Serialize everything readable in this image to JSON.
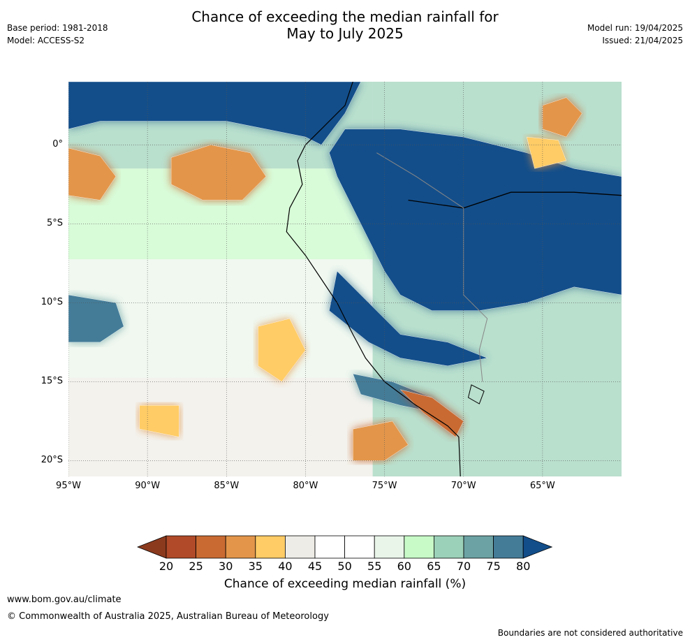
{
  "header": {
    "title_line1": "Chance of exceeding the median rainfall for",
    "title_line2": "May to July 2025",
    "base_period": "Base period: 1981-2018",
    "model": "Model: ACCESS-S2",
    "model_run": "Model run: 19/04/2025",
    "issued": "Issued: 21/04/2025"
  },
  "map": {
    "lon_range": [
      -95,
      -60
    ],
    "lat_range": [
      -21,
      4
    ],
    "lat_ticks": [
      {
        "value": 0,
        "label": "0°"
      },
      {
        "value": -5,
        "label": "5°S"
      },
      {
        "value": -10,
        "label": "10°S"
      },
      {
        "value": -15,
        "label": "15°S"
      },
      {
        "value": -20,
        "label": "20°S"
      }
    ],
    "lon_ticks": [
      {
        "value": -95,
        "label": "95°W"
      },
      {
        "value": -90,
        "label": "90°W"
      },
      {
        "value": -85,
        "label": "85°W"
      },
      {
        "value": -80,
        "label": "80°W"
      },
      {
        "value": -75,
        "label": "75°W"
      },
      {
        "value": -70,
        "label": "70°W"
      },
      {
        "value": -65,
        "label": "65°W"
      }
    ],
    "regions": [
      {
        "name": "north-east-pacific-wet",
        "value": 80,
        "poly": [
          [
            -95,
            4
          ],
          [
            -76.5,
            4
          ],
          [
            -77.5,
            2
          ],
          [
            -79,
            0
          ],
          [
            -80,
            0.5
          ],
          [
            -85,
            1.5
          ],
          [
            -88,
            1.5
          ],
          [
            -91,
            1.5
          ],
          [
            -93,
            1.5
          ],
          [
            -95,
            1
          ]
        ]
      },
      {
        "name": "amazon-wet",
        "value": 80,
        "poly": [
          [
            -77.5,
            1
          ],
          [
            -74,
            1
          ],
          [
            -70,
            0.5
          ],
          [
            -66,
            -0.5
          ],
          [
            -63,
            -1.5
          ],
          [
            -60,
            -2
          ],
          [
            -60,
            -9.5
          ],
          [
            -63,
            -9
          ],
          [
            -66,
            -10
          ],
          [
            -69,
            -10.5
          ],
          [
            -72,
            -10.5
          ],
          [
            -74,
            -9.5
          ],
          [
            -75,
            -8
          ],
          [
            -76,
            -6
          ],
          [
            -77,
            -4
          ],
          [
            -78,
            -2
          ],
          [
            -78.5,
            -0.5
          ]
        ]
      },
      {
        "name": "peru-coast-wet",
        "value": 80,
        "poly": [
          [
            -78,
            -8
          ],
          [
            -76,
            -10
          ],
          [
            -74,
            -12
          ],
          [
            -71,
            -12.5
          ],
          [
            -68.5,
            -13.5
          ],
          [
            -71,
            -14
          ],
          [
            -74,
            -13.5
          ],
          [
            -76,
            -12.5
          ],
          [
            -78.5,
            -10.5
          ]
        ]
      },
      {
        "name": "west-ocean-wet",
        "value": 75,
        "poly": [
          [
            -95,
            -9.5
          ],
          [
            -92,
            -10
          ],
          [
            -91.5,
            -11.5
          ],
          [
            -93,
            -12.5
          ],
          [
            -95,
            -12.5
          ]
        ]
      },
      {
        "name": "coast-strip-wet",
        "value": 75,
        "poly": [
          [
            -77,
            -14.5
          ],
          [
            -74.5,
            -15
          ],
          [
            -72,
            -16
          ],
          [
            -71.5,
            -17
          ],
          [
            -74,
            -16.5
          ],
          [
            -76.5,
            -15.8
          ]
        ]
      },
      {
        "name": "central-ocean-dry",
        "value": 30,
        "poly": [
          [
            -88.5,
            -0.8
          ],
          [
            -86,
            0
          ],
          [
            -83.5,
            -0.5
          ],
          [
            -82.5,
            -2
          ],
          [
            -84,
            -3.5
          ],
          [
            -86.5,
            -3.5
          ],
          [
            -88.5,
            -2.5
          ]
        ]
      },
      {
        "name": "west-ocean-dry",
        "value": 30,
        "poly": [
          [
            -95,
            -0.2
          ],
          [
            -93,
            -0.7
          ],
          [
            -92,
            -2
          ],
          [
            -93,
            -3.5
          ],
          [
            -95,
            -3.2
          ]
        ]
      },
      {
        "name": "east-dry",
        "value": 30,
        "poly": [
          [
            -65,
            2.5
          ],
          [
            -63.5,
            3
          ],
          [
            -62.5,
            2
          ],
          [
            -63.5,
            0.5
          ],
          [
            -65,
            1
          ]
        ]
      },
      {
        "name": "ecuador-dry",
        "value": 35,
        "poly": [
          [
            -66,
            0.5
          ],
          [
            -64,
            0.3
          ],
          [
            -63.5,
            -1
          ],
          [
            -65.5,
            -1.5
          ]
        ]
      },
      {
        "name": "south-ocean-dry-1",
        "value": 35,
        "poly": [
          [
            -83,
            -11.5
          ],
          [
            -81,
            -11
          ],
          [
            -80,
            -13
          ],
          [
            -81.5,
            -15
          ],
          [
            -83,
            -14
          ]
        ]
      },
      {
        "name": "south-ocean-dry-2",
        "value": 35,
        "poly": [
          [
            -90.5,
            -16.5
          ],
          [
            -88,
            -16.5
          ],
          [
            -88,
            -18.5
          ],
          [
            -90.5,
            -18
          ]
        ]
      },
      {
        "name": "south-ocean-dry-3",
        "value": 30,
        "poly": [
          [
            -77,
            -18
          ],
          [
            -74.5,
            -17.5
          ],
          [
            -73.5,
            -19
          ],
          [
            -75,
            -20
          ],
          [
            -77,
            -20
          ]
        ]
      },
      {
        "name": "chile-coast-dry",
        "value": 25,
        "poly": [
          [
            -74,
            -15.5
          ],
          [
            -72,
            -16
          ],
          [
            -70,
            -17.5
          ],
          [
            -70.5,
            -18.5
          ],
          [
            -72.5,
            -17
          ]
        ]
      }
    ],
    "legend_levels": [
      {
        "label": "20",
        "color": "#8B3A1E"
      },
      {
        "label": "25",
        "color": "#B04A28"
      },
      {
        "label": "30",
        "color": "#C96A32"
      },
      {
        "label": "35",
        "color": "#E3964A"
      },
      {
        "label": "40",
        "color": "#FFCC66"
      },
      {
        "label": "45",
        "color": "#EEECE6"
      },
      {
        "label": "50",
        "color": "#FFFFFF"
      },
      {
        "label": "55",
        "color": "#FFFFFF"
      },
      {
        "label": "60",
        "color": "#E9F5E9"
      },
      {
        "label": "65",
        "color": "#C7FAC7"
      },
      {
        "label": "70",
        "color": "#9BD1B8"
      },
      {
        "label": "75",
        "color": "#6CA2A3"
      },
      {
        "label": "80",
        "color": "#447C98"
      },
      {
        "label": "",
        "color": "#134E8A"
      }
    ]
  },
  "colorbar_label": "Chance of exceeding median rainfall (%)",
  "footer": {
    "url": "www.bom.gov.au/climate",
    "copyright": "© Commonwealth of Australia 2025, Australian Bureau of Meteorology",
    "disclaimer": "Boundaries are not considered authoritative"
  }
}
